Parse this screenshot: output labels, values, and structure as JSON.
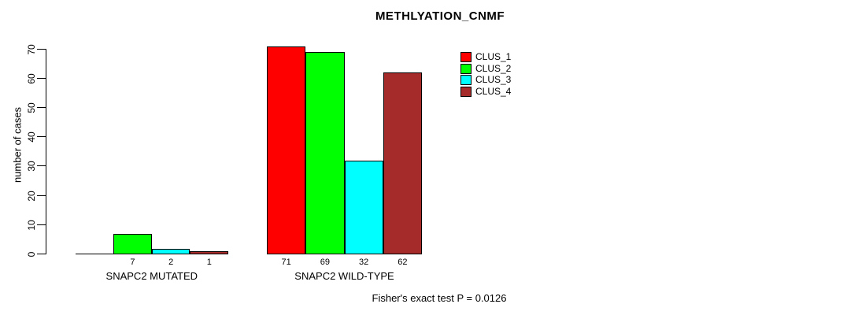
{
  "chart_data": {
    "type": "bar",
    "title": "METHLYATION_CNMF",
    "ylabel": "number of cases",
    "ylim": [
      0,
      70
    ],
    "yticks": [
      0,
      10,
      20,
      30,
      40,
      50,
      60,
      70
    ],
    "grid": false,
    "legend_position": "top-right",
    "series": [
      {
        "name": "CLUS_1",
        "color": "#FF0000"
      },
      {
        "name": "CLUS_2",
        "color": "#00FF00"
      },
      {
        "name": "CLUS_3",
        "color": "#00FFFF"
      },
      {
        "name": "CLUS_4",
        "color": "#A52A2A"
      }
    ],
    "groups": [
      {
        "label": "SNAPC2 MUTATED",
        "values": [
          0,
          7,
          2,
          1
        ]
      },
      {
        "label": "SNAPC2 WILD-TYPE",
        "values": [
          71,
          69,
          32,
          62
        ]
      }
    ],
    "annotation": "Fisher's exact test P = 0.0126"
  }
}
